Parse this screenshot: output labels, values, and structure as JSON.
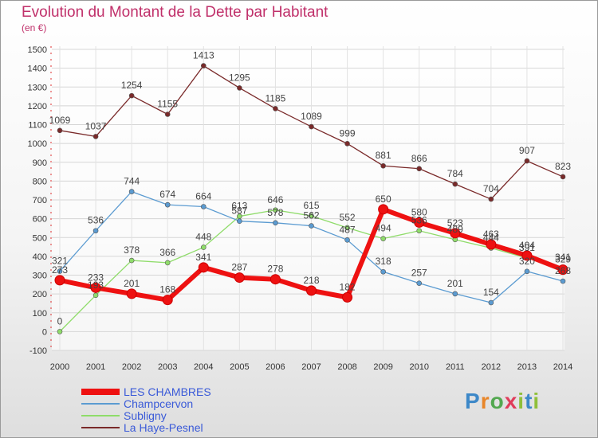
{
  "chart_data": {
    "type": "line",
    "title": "Evolution du Montant de la Dette par Habitant",
    "subtitle": "(en €)",
    "x": [
      2000,
      2001,
      2002,
      2003,
      2004,
      2005,
      2006,
      2007,
      2008,
      2009,
      2010,
      2011,
      2012,
      2013,
      2014
    ],
    "ylim": [
      -100,
      1500
    ],
    "yticks": [
      -100,
      0,
      100,
      200,
      300,
      400,
      500,
      600,
      700,
      800,
      900,
      1000,
      1100,
      1200,
      1300,
      1400,
      1500
    ],
    "grid": true,
    "legend_position": "bottom-left",
    "series": [
      {
        "name": "LES CHAMBRES",
        "color": "#ee1111",
        "values": [
          273,
          233,
          201,
          168,
          341,
          287,
          278,
          218,
          182,
          650,
          580,
          523,
          463,
          404,
          329
        ]
      },
      {
        "name": "Champcervon",
        "color": "#5b9bd1",
        "values": [
          321,
          536,
          744,
          674,
          664,
          587,
          578,
          562,
          487,
          318,
          257,
          201,
          154,
          320,
          268
        ]
      },
      {
        "name": "Subligny",
        "color": "#8fdc6a",
        "values": [
          0,
          193,
          378,
          366,
          448,
          613,
          646,
          615,
          552,
          494,
          536,
          489,
          444,
          391,
          341
        ]
      },
      {
        "name": "La Haye-Pesnel",
        "color": "#7a2a2a",
        "values": [
          1069,
          1037,
          1254,
          1155,
          1413,
          1295,
          1185,
          1089,
          999,
          881,
          866,
          784,
          704,
          907,
          823
        ]
      }
    ]
  },
  "logo": {
    "p": "P",
    "r": "r",
    "o": "o",
    "x": "x",
    "i": "i",
    "t": "t",
    "i2": "i"
  }
}
